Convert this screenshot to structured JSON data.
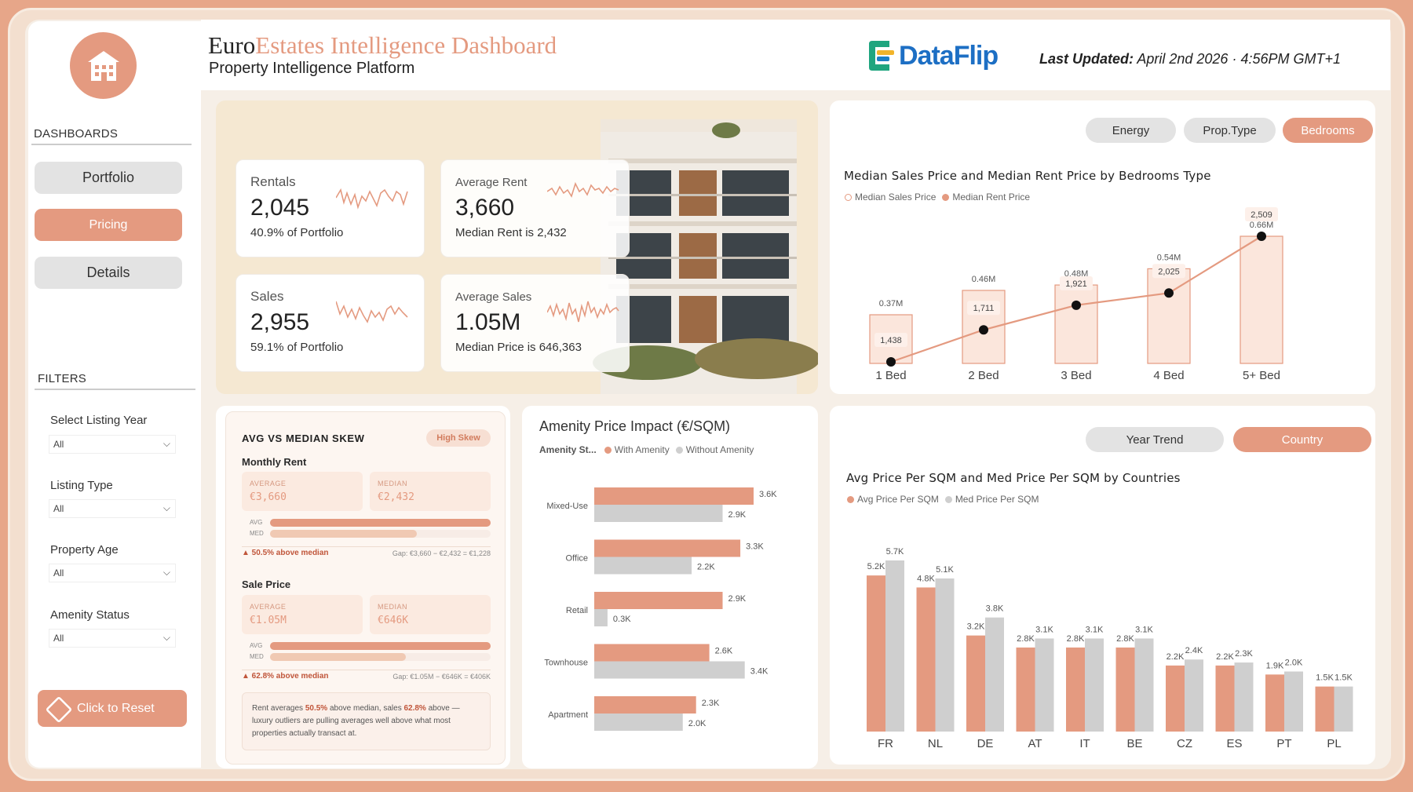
{
  "header": {
    "title_prefix": "Euro",
    "title_rest": "Estates Intelligence Dashboard",
    "subtitle": "Property Intelligence Platform",
    "brand": "DataFlip",
    "last_updated_label": "Last Updated:",
    "last_updated_value": "April 2nd 2026 · 4:56PM GMT+1"
  },
  "sidebar": {
    "dashboards_heading": "DASHBOARDS",
    "nav": [
      "Portfolio",
      "Pricing",
      "Details"
    ],
    "active": "Pricing",
    "filters_heading": "FILTERS",
    "filters": [
      {
        "label": "Select Listing Year",
        "value": "All"
      },
      {
        "label": "Listing Type",
        "value": "All"
      },
      {
        "label": "Property Age",
        "value": "All"
      },
      {
        "label": "Amenity Status",
        "value": "All"
      }
    ],
    "reset_label": "Click to Reset"
  },
  "kpis": [
    {
      "title": "Rentals",
      "value": "2,045",
      "sub": "40.9% of Portfolio"
    },
    {
      "title": "Average Rent",
      "value": "3,660",
      "sub": "Median Rent is 2,432"
    },
    {
      "title": "Sales",
      "value": "2,955",
      "sub": "59.1% of Portfolio"
    },
    {
      "title": "Average Sales",
      "value": "1.05M",
      "sub": "Median Price is 646,363"
    }
  ],
  "bedroom_toggles": [
    "Energy",
    "Prop.Type",
    "Bedrooms"
  ],
  "country_toggles": [
    "Year Trend",
    "Country"
  ],
  "colors": {
    "accent": "#e49a80",
    "grey": "#cfcfcf",
    "pale": "#fbe6dc"
  },
  "skew": {
    "title": "AVG VS MEDIAN SKEW",
    "badge": "High Skew",
    "rent": {
      "label": "Monthly Rent",
      "avg_label": "AVERAGE",
      "avg_value": "€3,660",
      "med_label": "MEDIAN",
      "med_value": "€2,432",
      "bar_avg": "AVG",
      "bar_med": "MED",
      "avg_ratio": 1.0,
      "med_ratio": 0.664,
      "above": "▲ 50.5% above median",
      "gap": "Gap: €3,660 − €2,432 = €1,228"
    },
    "sale": {
      "label": "Sale Price",
      "avg_label": "AVERAGE",
      "avg_value": "€1.05M",
      "med_label": "MEDIAN",
      "med_value": "€646K",
      "bar_avg": "AVG",
      "bar_med": "MED",
      "avg_ratio": 1.0,
      "med_ratio": 0.615,
      "above": "▲ 62.8% above median",
      "gap": "Gap: €1.05M − €646K = €406K"
    },
    "note_1": "Rent averages ",
    "note_pct_1": "50.5%",
    "note_2": " above median, sales ",
    "note_pct_2": "62.8%",
    "note_3": " above — luxury outliers are pulling averages well above what most properties actually transact at."
  },
  "chart_data": [
    {
      "type": "bar+line",
      "title": "Median Sales Price and Median Rent Price by Bedrooms Type",
      "legend": [
        "Median Sales Price",
        "Median Rent Price"
      ],
      "categories": [
        "1 Bed",
        "2 Bed",
        "3 Bed",
        "4 Bed",
        "5+ Bed"
      ],
      "series": [
        {
          "name": "Median Sales Price",
          "values": [
            0.37,
            0.46,
            0.48,
            0.54,
            0.66
          ],
          "labels": [
            "0.37M",
            "0.46M",
            "0.48M",
            "0.54M",
            "0.66M"
          ]
        },
        {
          "name": "Median Rent Price",
          "values": [
            1438,
            1711,
            1921,
            2025,
            2509
          ],
          "labels": [
            "1,438",
            "1,711",
            "1,921",
            "2,025",
            "2,509"
          ]
        }
      ]
    },
    {
      "type": "bar",
      "orientation": "horizontal",
      "title": "Amenity Price Impact (€/SQM)",
      "legend_title": "Amenity St...",
      "legend": [
        "With Amenity",
        "Without Amenity"
      ],
      "categories": [
        "Mixed-Use",
        "Office",
        "Retail",
        "Townhouse",
        "Apartment"
      ],
      "series": [
        {
          "name": "With Amenity",
          "values": [
            3.6,
            3.3,
            2.9,
            2.6,
            2.3
          ],
          "labels": [
            "3.6K",
            "3.3K",
            "2.9K",
            "2.6K",
            "2.3K"
          ]
        },
        {
          "name": "Without Amenity",
          "values": [
            2.9,
            2.2,
            0.3,
            3.4,
            2.0
          ],
          "labels": [
            "2.9K",
            "2.2K",
            "0.3K",
            "3.4K",
            "2.0K"
          ]
        }
      ]
    },
    {
      "type": "bar",
      "title": "Avg Price Per SQM and Med Price Per SQM by Countries",
      "legend": [
        "Avg Price Per SQM",
        "Med Price Per SQM"
      ],
      "categories": [
        "FR",
        "NL",
        "DE",
        "AT",
        "IT",
        "BE",
        "CZ",
        "ES",
        "PT",
        "PL"
      ],
      "series": [
        {
          "name": "Avg Price Per SQM",
          "values": [
            5.2,
            4.8,
            3.2,
            2.8,
            2.8,
            2.8,
            2.2,
            2.2,
            1.9,
            1.5
          ],
          "labels": [
            "5.2K",
            "4.8K",
            "3.2K",
            "2.8K",
            "2.8K",
            "2.8K",
            "2.2K",
            "2.2K",
            "1.9K",
            "1.5K"
          ]
        },
        {
          "name": "Med Price Per SQM",
          "values": [
            5.7,
            5.1,
            3.8,
            3.1,
            3.1,
            3.1,
            2.4,
            2.3,
            2.0,
            1.5
          ],
          "labels": [
            "5.7K",
            "5.1K",
            "3.8K",
            "3.1K",
            "3.1K",
            "3.1K",
            "2.4K",
            "2.3K",
            "2.0K",
            "1.5K"
          ]
        }
      ]
    }
  ]
}
